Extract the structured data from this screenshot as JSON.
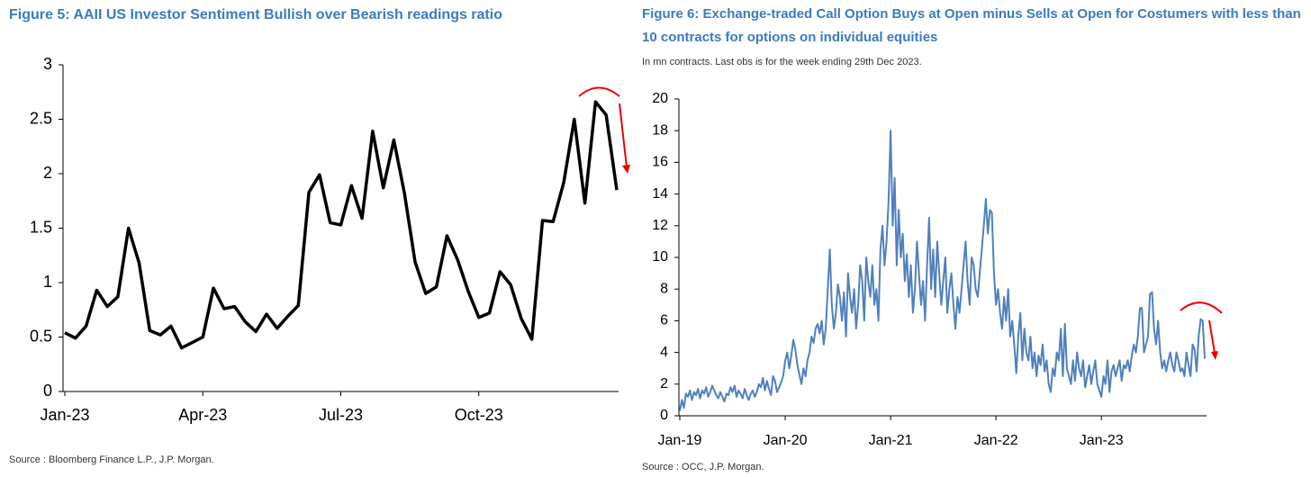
{
  "chart_data": [
    {
      "type": "line",
      "title": "Figure 5: AAII US Investor Sentiment Bullish over Bearish readings ratio",
      "source": "Source : Bloomberg Finance L.P., J.P. Morgan.",
      "color": "#000000",
      "categories": [
        "Jan-23",
        null,
        null,
        null,
        null,
        null,
        null,
        null,
        null,
        null,
        null,
        null,
        null,
        "Apr-23",
        null,
        null,
        null,
        null,
        null,
        null,
        null,
        null,
        null,
        null,
        null,
        null,
        "Jul-23",
        null,
        null,
        null,
        null,
        null,
        null,
        null,
        null,
        null,
        null,
        null,
        null,
        "Oct-23",
        null,
        null,
        null,
        null,
        null,
        null,
        null,
        null,
        null,
        null,
        null,
        null,
        null
      ],
      "values": [
        0.54,
        0.49,
        0.6,
        0.93,
        0.78,
        0.87,
        1.5,
        1.18,
        0.56,
        0.52,
        0.6,
        0.4,
        0.45,
        0.5,
        0.95,
        0.76,
        0.78,
        0.64,
        0.55,
        0.71,
        0.58,
        0.69,
        0.79,
        1.83,
        1.99,
        1.55,
        1.53,
        1.89,
        1.59,
        2.39,
        1.87,
        2.31,
        1.82,
        1.19,
        0.9,
        0.96,
        1.43,
        1.21,
        0.92,
        0.68,
        0.72,
        1.1,
        0.98,
        0.67,
        0.48,
        1.57,
        1.56,
        1.92,
        2.5,
        1.73,
        2.66,
        2.54,
        1.85
      ],
      "ylim": [
        0,
        3
      ],
      "yticks": [
        0,
        0.5,
        1,
        1.5,
        2,
        2.5,
        3
      ],
      "grid": false
    },
    {
      "type": "line",
      "title": "Figure 6: Exchange-traded Call Option Buys at Open minus Sells at Open for Costumers with less than 10 contracts for options on individual equities",
      "subtitle": "In mn contracts. Last obs is for the week ending 29th Dec 2023.",
      "source": "Source : OCC, J.P. Morgan.",
      "color": "#4f81bd",
      "categories": [
        "Jan-19",
        null,
        null,
        null,
        null,
        null,
        null,
        null,
        null,
        null,
        null,
        null,
        null,
        null,
        null,
        null,
        null,
        null,
        null,
        null,
        null,
        null,
        null,
        null,
        null,
        null,
        null,
        null,
        null,
        null,
        null,
        null,
        null,
        null,
        null,
        null,
        null,
        null,
        null,
        null,
        null,
        null,
        null,
        null,
        null,
        null,
        null,
        null,
        null,
        null,
        null,
        null,
        "Jan-20",
        null,
        null,
        null,
        null,
        null,
        null,
        null,
        null,
        null,
        null,
        null,
        null,
        null,
        null,
        null,
        null,
        null,
        null,
        null,
        null,
        null,
        null,
        null,
        null,
        null,
        null,
        null,
        null,
        null,
        null,
        null,
        null,
        null,
        null,
        null,
        null,
        null,
        null,
        null,
        null,
        null,
        null,
        null,
        null,
        null,
        null,
        null,
        null,
        null,
        null,
        null,
        "Jan-21",
        null,
        null,
        null,
        null,
        null,
        null,
        null,
        null,
        null,
        null,
        null,
        null,
        null,
        null,
        null,
        null,
        null,
        null,
        null,
        null,
        null,
        null,
        null,
        null,
        null,
        null,
        null,
        null,
        null,
        null,
        null,
        null,
        null,
        null,
        null,
        null,
        null,
        null,
        null,
        null,
        null,
        null,
        null,
        null,
        null,
        null,
        null,
        null,
        null,
        null,
        null,
        "Jan-22",
        null,
        null,
        null,
        null,
        null,
        null,
        null,
        null,
        null,
        null,
        null,
        null,
        null,
        null,
        null,
        null,
        null,
        null,
        null,
        null,
        null,
        null,
        null,
        null,
        null,
        null,
        null,
        null,
        null,
        null,
        null,
        null,
        null,
        null,
        null,
        null,
        null,
        null,
        null,
        null,
        null,
        null,
        null,
        null,
        null,
        null,
        null,
        null,
        null,
        null,
        null,
        "Jan-23",
        null,
        null,
        null,
        null,
        null,
        null,
        null,
        null,
        null,
        null,
        null,
        null,
        null,
        null,
        null,
        null,
        null,
        null,
        null,
        null,
        null,
        null,
        null,
        null,
        null,
        null,
        null,
        null,
        null,
        null,
        null,
        null,
        null,
        null,
        null,
        null,
        null,
        null,
        null,
        null,
        null,
        null,
        null,
        null,
        null,
        null,
        null,
        null,
        null,
        null,
        null
      ],
      "values": [
        0.3,
        1.0,
        0.5,
        1.4,
        1.2,
        1.6,
        1.0,
        1.5,
        1.3,
        1.7,
        1.1,
        1.6,
        1.4,
        1.8,
        1.2,
        1.5,
        1.9,
        1.6,
        1.3,
        1.1,
        1.5,
        1.2,
        0.9,
        1.4,
        1.3,
        1.8,
        1.5,
        1.9,
        1.2,
        1.6,
        1.4,
        1.1,
        1.7,
        1.3,
        1.0,
        1.4,
        1.6,
        1.2,
        1.5,
        2.0,
        1.8,
        2.4,
        1.6,
        2.2,
        1.7,
        1.3,
        2.5,
        2.2,
        1.5,
        1.8,
        2.1,
        2.5,
        3.5,
        4.0,
        3.0,
        3.8,
        4.8,
        4.2,
        3.2,
        2.6,
        2.0,
        3.0,
        2.5,
        3.5,
        4.0,
        5.0,
        4.6,
        5.5,
        5.8,
        5.2,
        6.0,
        4.5,
        5.5,
        8.0,
        10.5,
        7.0,
        5.5,
        6.5,
        8.3,
        7.5,
        6.0,
        7.8,
        5.0,
        9.0,
        7.5,
        6.5,
        8.0,
        5.5,
        7.0,
        9.5,
        8.5,
        6.0,
        10.0,
        8.5,
        7.5,
        9.5,
        7.0,
        8.0,
        6.0,
        10.5,
        12.0,
        9.5,
        11.0,
        13.5,
        18.0,
        12.0,
        15.0,
        9.5,
        13.0,
        10.0,
        11.5,
        8.5,
        10.2,
        7.5,
        9.5,
        6.5,
        8.0,
        11.0,
        9.0,
        7.0,
        8.5,
        6.0,
        9.5,
        12.5,
        8.0,
        10.5,
        7.5,
        11.0,
        9.0,
        7.0,
        8.5,
        10.0,
        6.5,
        8.0,
        9.0,
        7.0,
        5.5,
        7.5,
        6.5,
        8.0,
        9.5,
        11.0,
        8.5,
        7.0,
        10.0,
        9.5,
        8.0,
        7.5,
        9.0,
        10.5,
        12.0,
        13.7,
        11.5,
        13.0,
        12.8,
        9.0,
        7.0,
        8.0,
        6.5,
        5.5,
        7.5,
        6.0,
        8.0,
        5.0,
        6.0,
        4.5,
        2.7,
        5.0,
        6.5,
        3.5,
        5.5,
        4.0,
        3.5,
        5.0,
        3.0,
        4.0,
        2.5,
        3.8,
        3.2,
        4.5,
        2.8,
        3.5,
        2.0,
        1.5,
        3.0,
        2.5,
        4.0,
        3.5,
        5.5,
        2.5,
        5.8,
        3.0,
        2.5,
        2.0,
        3.5,
        2.2,
        4.0,
        3.0,
        2.5,
        3.5,
        1.8,
        2.5,
        3.2,
        2.0,
        2.8,
        3.5,
        2.0,
        1.6,
        1.2,
        2.5,
        2.0,
        3.5,
        1.5,
        2.8,
        3.2,
        2.5,
        3.0,
        3.5,
        2.2,
        3.2,
        3.0,
        3.5,
        2.8,
        3.8,
        4.5,
        4.0,
        5.0,
        6.8,
        6.8,
        4.0,
        4.5,
        5.0,
        7.7,
        7.8,
        5.5,
        4.5,
        6.0,
        4.0,
        3.0,
        3.5,
        2.8,
        3.5,
        4.0,
        3.2,
        2.8,
        4.0,
        3.5,
        2.8,
        3.0,
        2.5,
        4.0,
        3.2,
        2.5,
        4.5,
        4.2,
        2.8,
        5.0,
        6.1,
        6.0,
        3.6
      ],
      "ylim": [
        0,
        20
      ],
      "yticks": [
        0,
        2,
        4,
        6,
        8,
        10,
        12,
        14,
        16,
        18,
        20
      ],
      "grid": false
    }
  ]
}
